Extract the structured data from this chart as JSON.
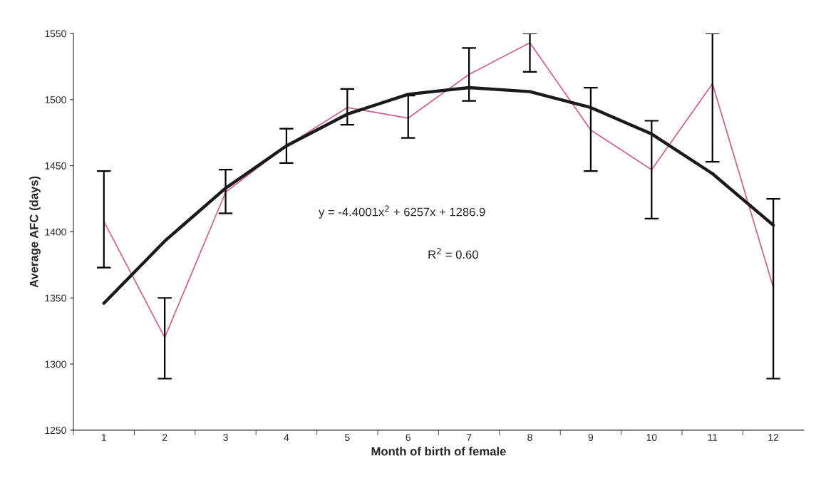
{
  "chart_data": {
    "type": "line",
    "xlabel": "Month of birth of female",
    "ylabel": "Average AFC (days)",
    "categories": [
      "1",
      "2",
      "3",
      "4",
      "5",
      "6",
      "7",
      "8",
      "9",
      "10",
      "11",
      "12"
    ],
    "series": [
      {
        "color": "#cc6699",
        "values": [
          1408,
          1320,
          1430,
          1465,
          1494,
          1486,
          1519,
          1543,
          1477,
          1447,
          1512,
          1358
        ],
        "errors": [
          [
            1373,
            1446
          ],
          [
            1289,
            1350
          ],
          [
            1414,
            1447
          ],
          [
            1452,
            1478
          ],
          [
            1481,
            1508
          ],
          [
            1471,
            1503
          ],
          [
            1499,
            1539
          ],
          [
            1521,
            1550
          ],
          [
            1446,
            1509
          ],
          [
            1410,
            1484
          ],
          [
            1453,
            1550
          ],
          [
            1289,
            1425
          ]
        ]
      },
      {
        "color": "#1a1a1a",
        "values": [
          1346,
          1393,
          1433,
          1465,
          1489,
          1504,
          1509,
          1506,
          1494,
          1474,
          1444,
          1405
        ]
      }
    ],
    "ylim": [
      1250,
      1550
    ],
    "yticks": [
      1250,
      1300,
      1350,
      1400,
      1450,
      1500,
      1550
    ],
    "annotations": [
      "y = -4.4001x$^{2}$ + 6257x + 1286.9",
      "R$^{2}$ = 0.60"
    ],
    "grid": false,
    "legend": false,
    "marker": "none"
  }
}
